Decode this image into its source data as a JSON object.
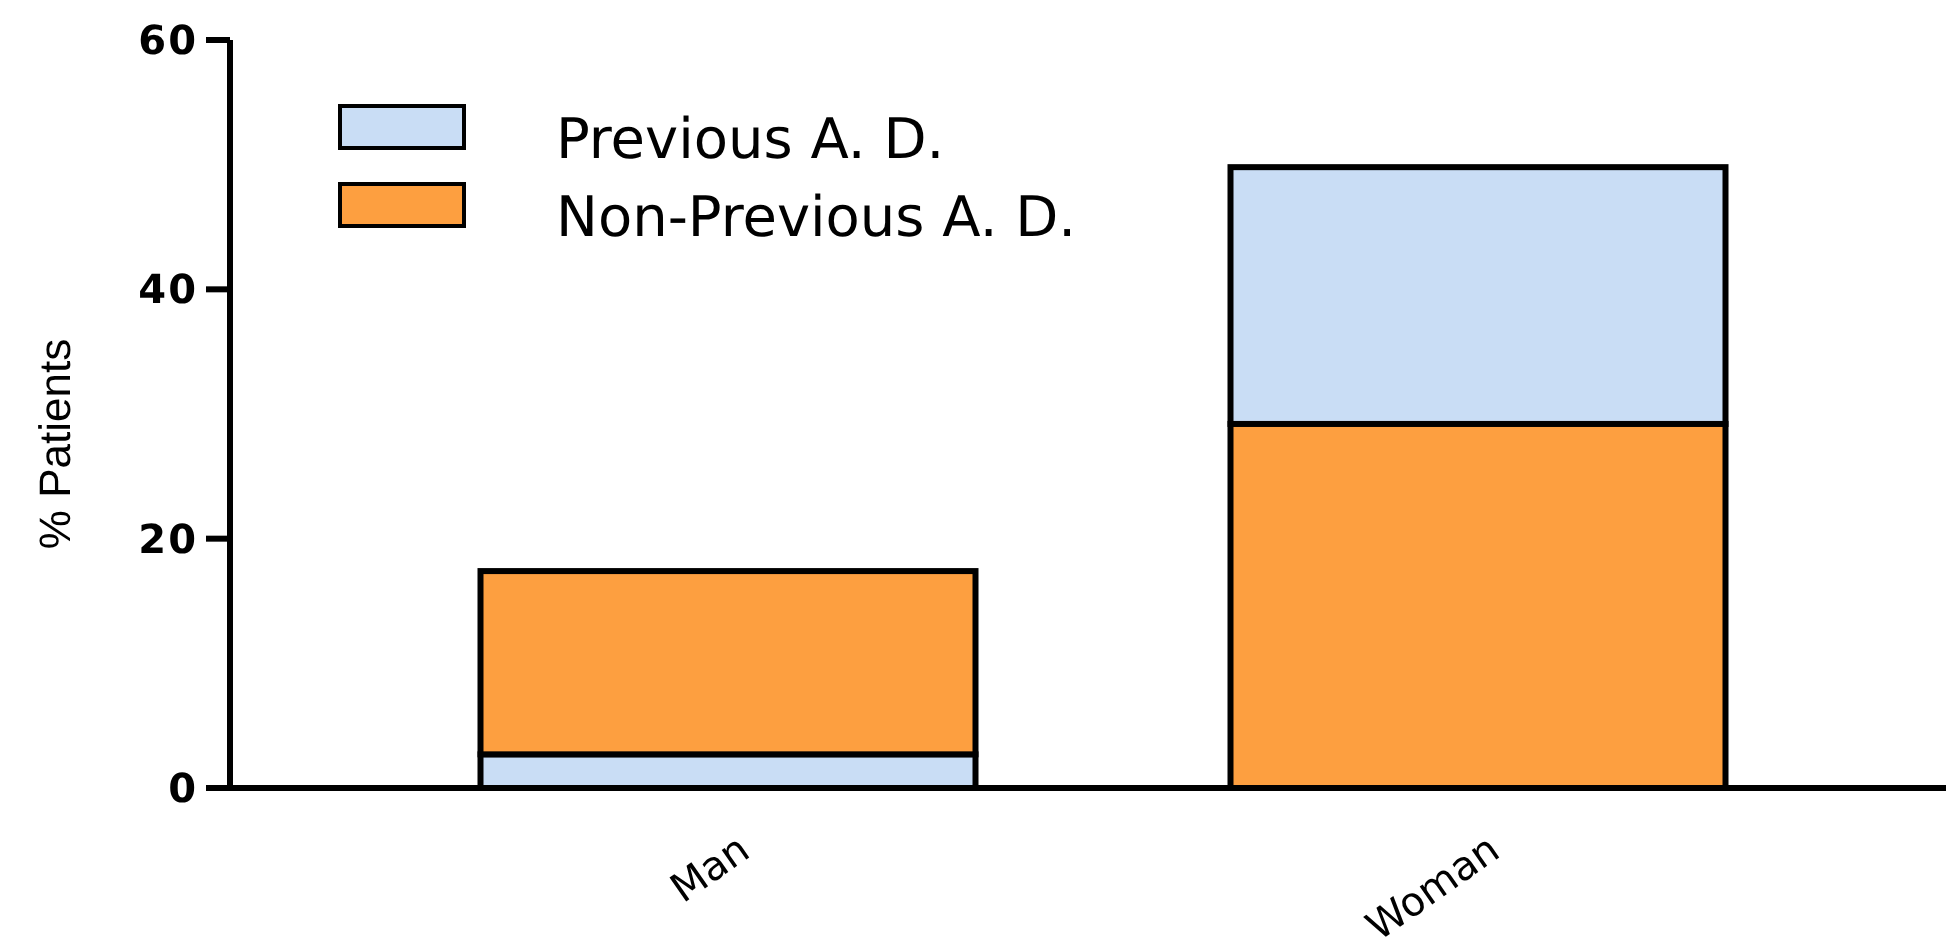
{
  "chart_data": {
    "type": "bar",
    "ylabel": "% Patients",
    "categories": [
      "Man",
      "Woman"
    ],
    "series": [
      {
        "name": "Previous A. D.",
        "color": "#c9ddf5",
        "values": [
          2.7,
          20.6
        ],
        "base": [
          0,
          29.2
        ]
      },
      {
        "name": "Non-Previous A. D.",
        "color": "#fd9f40",
        "values": [
          14.7,
          29.2
        ],
        "base": [
          2.7,
          0
        ]
      }
    ],
    "ylim": [
      0,
      60
    ],
    "yticks": [
      0,
      20,
      40,
      60
    ],
    "legend": "top left"
  }
}
